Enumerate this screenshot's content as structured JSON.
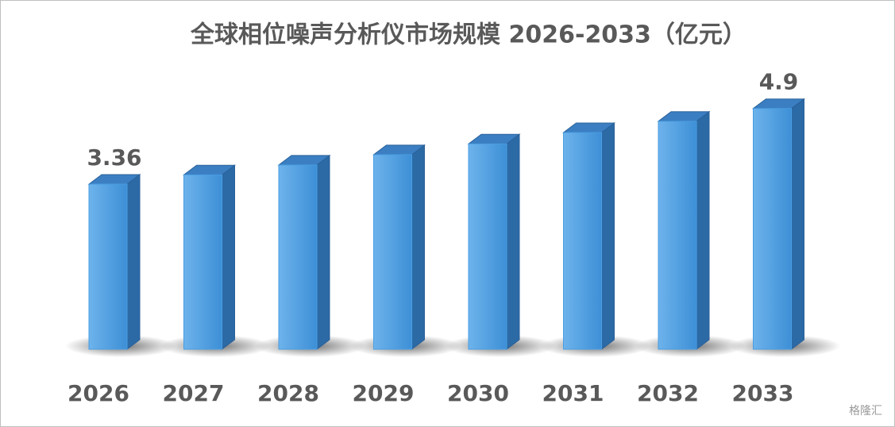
{
  "chart_data": {
    "type": "bar3d",
    "title": "全球相位噪声分析仪市场规模 2026-2033（亿元）",
    "categories": [
      "2026",
      "2027",
      "2028",
      "2029",
      "2030",
      "2031",
      "2032",
      "2033"
    ],
    "values": [
      3.36,
      3.55,
      3.75,
      3.96,
      4.18,
      4.41,
      4.64,
      4.9
    ],
    "value_labels": [
      "3.36",
      null,
      null,
      null,
      null,
      null,
      null,
      "4.9"
    ],
    "color": "#4a9ee3"
  },
  "watermark": "格隆汇"
}
